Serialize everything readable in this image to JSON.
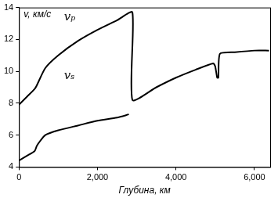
{
  "chart_data": {
    "type": "line",
    "x_label": "Глубина, км",
    "y_label": "v, км/с",
    "xlim": [
      0,
      6400
    ],
    "xticks": [
      0,
      2000,
      4000,
      6000
    ],
    "ylim": [
      4,
      14
    ],
    "yticks": [
      4,
      6,
      8,
      10,
      12,
      14
    ],
    "grid": false,
    "series": [
      {
        "color": "#000000",
        "x": [
          0,
          200,
          400,
          450,
          670,
          1000,
          1500,
          2000,
          2500,
          2890,
          2890,
          3500,
          4000,
          4500,
          4950,
          5000,
          5050,
          5080,
          5120,
          5500,
          6000,
          6371
        ],
        "values": [
          7.9,
          8.4,
          8.9,
          9.1,
          10.2,
          11.0,
          11.9,
          12.6,
          13.2,
          13.7,
          8.2,
          9.0,
          9.6,
          10.1,
          10.5,
          10.3,
          9.6,
          9.6,
          11.1,
          11.2,
          11.3,
          11.3
        ]
      },
      {
        "color": "#000000",
        "x": [
          0,
          200,
          400,
          450,
          500,
          670,
          1000,
          1500,
          2000,
          2500,
          2800
        ],
        "values": [
          4.4,
          4.7,
          5.0,
          5.3,
          5.5,
          6.0,
          6.3,
          6.6,
          6.9,
          7.1,
          7.3
        ]
      }
    ],
    "annotations": [
      {
        "text": "vₚ",
        "x": 1150,
        "y": 13.4
      },
      {
        "text": "vₛ",
        "x": 1150,
        "y": 9.7
      }
    ]
  }
}
